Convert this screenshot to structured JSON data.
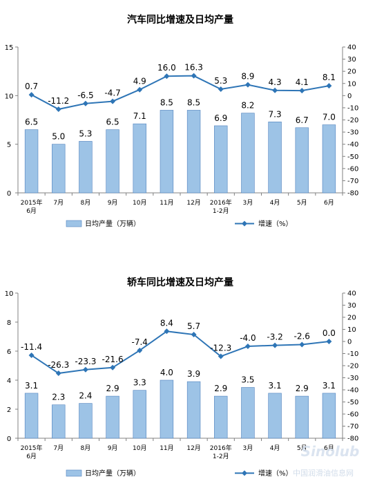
{
  "chart_data": [
    {
      "type": "bar",
      "title": "汽车同比增速及日均产量",
      "categories": [
        "2015年\n6月",
        "7月",
        "8月",
        "9月",
        "10月",
        "11月",
        "12月",
        "2016年\n1-2月",
        "3月",
        "4月",
        "5月",
        "6月"
      ],
      "series": [
        {
          "name": "日均产量（万辆）",
          "type": "bar",
          "axis": "left",
          "values": [
            6.5,
            5.0,
            5.3,
            6.5,
            7.1,
            8.5,
            8.5,
            6.9,
            8.2,
            7.3,
            6.7,
            7.0
          ]
        },
        {
          "name": "增速（%）",
          "type": "line",
          "axis": "right",
          "values": [
            0.7,
            -11.2,
            -6.5,
            -4.7,
            4.9,
            16.0,
            16.3,
            5.3,
            8.9,
            4.3,
            4.1,
            8.1
          ]
        }
      ],
      "y_left": {
        "range": [
          0,
          15
        ],
        "ticks": [
          0,
          5,
          10,
          15
        ]
      },
      "y_right": {
        "range": [
          -80,
          40
        ],
        "ticks": [
          40,
          30,
          20,
          10,
          0,
          -10,
          -20,
          -30,
          -40,
          -50,
          -60,
          -70,
          -80
        ]
      },
      "bar_color": "#9dc3e6",
      "bar_edge_color": "#4f81bd",
      "line_color": "#2e75b6",
      "legend_position": "bottom",
      "grid": false
    },
    {
      "type": "bar",
      "title": "轿车同比增速及日均产量",
      "categories": [
        "2015年\n6月",
        "7月",
        "8月",
        "9月",
        "10月",
        "11月",
        "12月",
        "2016年\n1-2月",
        "3月",
        "4月",
        "5月",
        "6月"
      ],
      "series": [
        {
          "name": "日均产量（万辆）",
          "type": "bar",
          "axis": "left",
          "values": [
            3.1,
            2.3,
            2.4,
            2.9,
            3.3,
            4.0,
            3.9,
            2.9,
            3.5,
            3.1,
            2.9,
            3.1
          ]
        },
        {
          "name": "增速（%）",
          "type": "line",
          "axis": "right",
          "values": [
            -11.4,
            -26.3,
            -23.3,
            -21.6,
            -7.4,
            8.4,
            5.7,
            -12.3,
            -4.0,
            -3.2,
            -2.6,
            0.0
          ]
        }
      ],
      "y_left": {
        "range": [
          0,
          10
        ],
        "ticks": [
          0,
          2,
          4,
          6,
          8,
          10
        ]
      },
      "y_right": {
        "range": [
          -80,
          40
        ],
        "ticks": [
          40,
          30,
          20,
          10,
          0,
          -10,
          -20,
          -30,
          -40,
          -50,
          -60,
          -70,
          -80
        ]
      },
      "bar_color": "#9dc3e6",
      "bar_edge_color": "#4f81bd",
      "line_color": "#2e75b6",
      "legend_position": "bottom",
      "grid": false
    }
  ],
  "watermark": {
    "logo": "Sinolub",
    "text": "中国润滑油信息网"
  }
}
